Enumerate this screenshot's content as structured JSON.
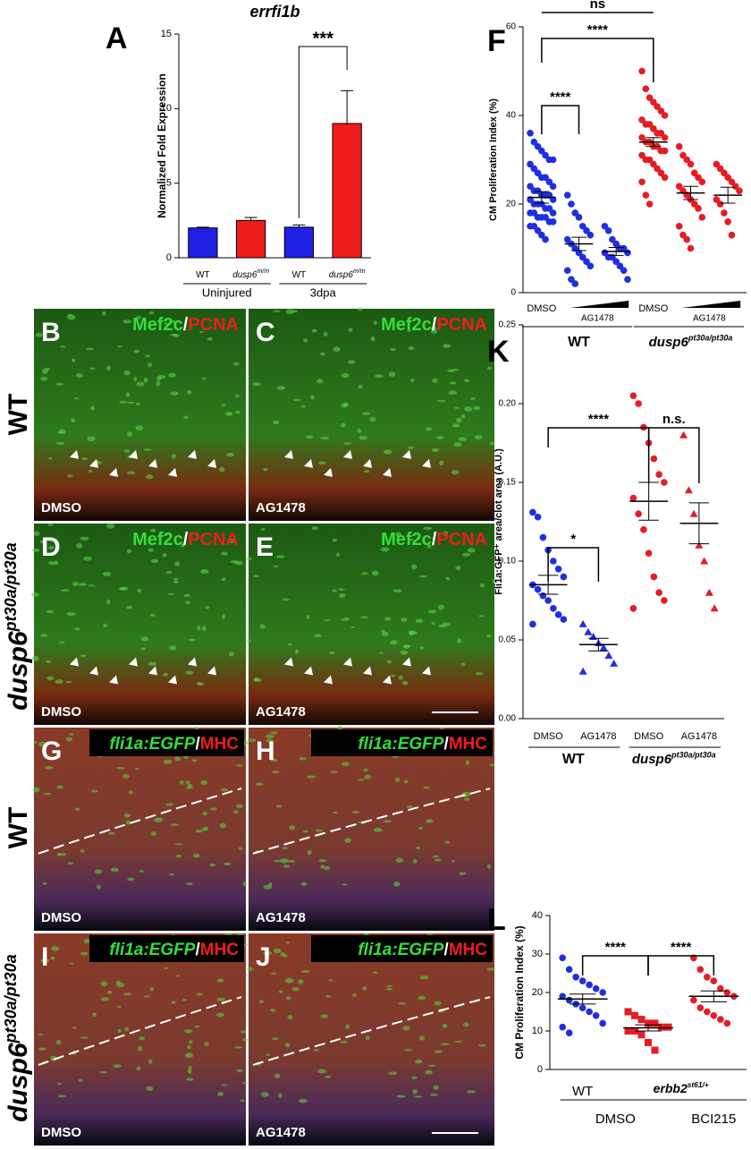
{
  "chart_data": [
    {
      "type": "bar",
      "panel": "A",
      "title": "errfi1b",
      "ylabel": "Normalized Fold Expression",
      "categories": [
        "WT",
        "dusp6",
        "WT",
        "dusp6"
      ],
      "category_superscripts": [
        null,
        "m/m",
        null,
        "m/m"
      ],
      "values": [
        2.0,
        2.5,
        2.05,
        9.0
      ],
      "errors": [
        0.05,
        0.2,
        0.15,
        2.2
      ],
      "colors": [
        "#1f1fe6",
        "#ee1c1c",
        "#1f1fe6",
        "#ee1c1c"
      ],
      "ylim": [
        0,
        15
      ],
      "yticks": [
        0,
        5,
        10,
        15
      ],
      "groups": [
        "Uninjured",
        "3dpa"
      ],
      "significance": [
        {
          "text": "***"
        }
      ]
    },
    {
      "type": "dotplot",
      "panel": "F",
      "ylabel": "CM Proliferation Index (%)",
      "categories": [
        "DMSO",
        null,
        null,
        "DMSO",
        null,
        null
      ],
      "treatment_labels": [
        "AG1478",
        "AG1478"
      ],
      "groups": [
        "WT",
        {
          "name": "dusp6",
          "superscript": "pt30a/pt30a"
        }
      ],
      "colors": [
        "#1f2fe0",
        "#1f2fe0",
        "#1f2fe0",
        "#e61c24",
        "#e61c24",
        "#e61c24"
      ],
      "markers": [
        "circle",
        "circle",
        "circle",
        "circle",
        "circle",
        "circle"
      ],
      "values": [
        [
          36,
          34,
          33,
          32,
          31,
          30,
          30,
          29,
          28,
          27,
          26,
          26,
          25,
          24,
          24,
          23,
          23,
          22,
          22,
          22,
          21,
          21,
          20,
          20,
          20,
          19,
          19,
          18,
          18,
          18,
          17,
          17,
          17,
          16,
          16,
          15,
          15,
          14,
          13,
          12
        ],
        [
          22,
          20,
          18,
          17,
          15,
          14,
          13,
          12,
          11,
          10,
          9,
          8,
          7,
          6,
          5,
          3,
          2
        ],
        [
          15,
          14,
          12,
          11,
          10,
          10,
          9,
          9,
          8,
          8,
          7,
          6,
          5,
          3
        ],
        [
          50,
          46,
          44,
          43,
          42,
          41,
          40,
          39,
          38,
          38,
          37,
          36,
          36,
          35,
          35,
          34,
          34,
          33,
          33,
          32,
          32,
          31,
          30,
          30,
          29,
          28,
          27,
          26,
          25,
          22,
          20
        ],
        [
          33,
          31,
          30,
          29,
          27,
          26,
          25,
          24,
          23,
          22,
          21,
          20,
          19,
          17,
          15,
          13,
          12,
          10
        ],
        [
          29,
          28,
          27,
          26,
          25,
          24,
          23,
          21,
          20,
          18,
          16,
          13
        ]
      ],
      "means": [
        21.5,
        11,
        9.3,
        34,
        22.5,
        22
      ],
      "errors": [
        1.3,
        1.5,
        0.9,
        1.0,
        1.5,
        1.8
      ],
      "ylim": [
        0,
        60
      ],
      "yticks": [
        0,
        20,
        40,
        60
      ],
      "significance": [
        {
          "text": "****"
        },
        {
          "text": "****"
        },
        {
          "text": "ns"
        }
      ]
    },
    {
      "type": "dotplot",
      "panel": "K",
      "ylabel": "Fli1a:GFP⁺ area/clot area (A.U.)",
      "categories": [
        "DMSO",
        "AG1478",
        "DMSO",
        "AG1478"
      ],
      "groups": [
        "WT",
        {
          "name": "dusp6",
          "superscript": "pt30a/pt30a"
        }
      ],
      "colors": [
        "#1f2fe0",
        "#1f2fe0",
        "#e61c24",
        "#e61c24"
      ],
      "markers": [
        "circle",
        "triangle",
        "circle",
        "triangle"
      ],
      "values": [
        [
          0.131,
          0.128,
          0.115,
          0.107,
          0.1,
          0.095,
          0.09,
          0.085,
          0.082,
          0.078,
          0.075,
          0.07,
          0.066,
          0.063,
          0.06
        ],
        [
          0.06,
          0.055,
          0.052,
          0.048,
          0.045,
          0.04,
          0.035,
          0.03
        ],
        [
          0.205,
          0.2,
          0.185,
          0.175,
          0.165,
          0.155,
          0.15,
          0.14,
          0.13,
          0.12,
          0.105,
          0.09,
          0.08,
          0.075,
          0.07
        ],
        [
          0.18,
          0.145,
          0.13,
          0.11,
          0.1,
          0.08,
          0.07
        ]
      ],
      "means": [
        0.085,
        0.047,
        0.138,
        0.124
      ],
      "errors": [
        0.006,
        0.004,
        0.012,
        0.013
      ],
      "ylim": [
        0,
        0.25
      ],
      "yticks": [
        {
          "value": 0,
          "label": "0.00"
        },
        {
          "value": 0.05,
          "label": "0.05"
        },
        {
          "value": 0.1,
          "label": "0.10"
        },
        {
          "value": 0.15,
          "label": "0.15"
        },
        {
          "value": 0.2,
          "label": "0.20"
        },
        {
          "value": 0.25,
          "label": "0.25"
        }
      ],
      "significance": [
        {
          "text": "*"
        },
        {
          "text": "****"
        },
        {
          "text": "n.s."
        }
      ]
    },
    {
      "type": "dotplot",
      "panel": "L",
      "ylabel": "CM Proliferation Index (%)",
      "categories": [
        null,
        null,
        null
      ],
      "groups": [
        "WT",
        {
          "name": "erbb2",
          "superscript": "st61/+"
        }
      ],
      "treatment_labels": [
        "DMSO",
        "BCI215"
      ],
      "colors": [
        "#1f2fe0",
        "#e61c24",
        "#e61c24"
      ],
      "markers": [
        "circle",
        "square",
        "circle"
      ],
      "values": [
        [
          29,
          26,
          24,
          23,
          22,
          21,
          20,
          19,
          18,
          17,
          16,
          15,
          14,
          12,
          11,
          9.5
        ],
        [
          15,
          14,
          13,
          12,
          12,
          11,
          11,
          10,
          10,
          9,
          7,
          5
        ],
        [
          29,
          26,
          24,
          23,
          21,
          20,
          19,
          18,
          16,
          15,
          14,
          13,
          12
        ]
      ],
      "means": [
        18.3,
        10.8,
        19
      ],
      "errors": [
        1.3,
        0.8,
        1.4
      ],
      "ylim": [
        0,
        40
      ],
      "yticks": [
        0,
        10,
        20,
        30,
        40
      ],
      "significance": [
        {
          "text": "****"
        },
        {
          "text": "****"
        }
      ]
    }
  ],
  "image_panels": [
    {
      "label": "B",
      "stain": [
        "Mef2c",
        "/",
        "PCNA"
      ],
      "treatment": "DMSO"
    },
    {
      "label": "C",
      "stain": [
        "Mef2c",
        "/",
        "PCNA"
      ],
      "treatment": "AG1478"
    },
    {
      "label": "D",
      "stain": [
        "Mef2c",
        "/",
        "PCNA"
      ],
      "treatment": "DMSO"
    },
    {
      "label": "E",
      "stain": [
        "Mef2c",
        "/",
        "PCNA"
      ],
      "treatment": "AG1478"
    },
    {
      "label": "G",
      "stain": [
        "fli1a:EGFP",
        "/",
        "MHC"
      ],
      "treatment": "DMSO"
    },
    {
      "label": "H",
      "stain": [
        "fli1a:EGFP",
        "/",
        "MHC"
      ],
      "treatment": "AG1478"
    },
    {
      "label": "I",
      "stain": [
        "fli1a:EGFP",
        "/",
        "MHC"
      ],
      "treatment": "DMSO"
    },
    {
      "label": "J",
      "stain": [
        "fli1a:EGFP",
        "/",
        "MHC"
      ],
      "treatment": "AG1478"
    }
  ],
  "row_labels": [
    "WT",
    {
      "name": "dusp6",
      "superscript": "pt30a/pt30a"
    },
    "WT",
    {
      "name": "dusp6",
      "superscript": "pt30a/pt30a"
    }
  ]
}
